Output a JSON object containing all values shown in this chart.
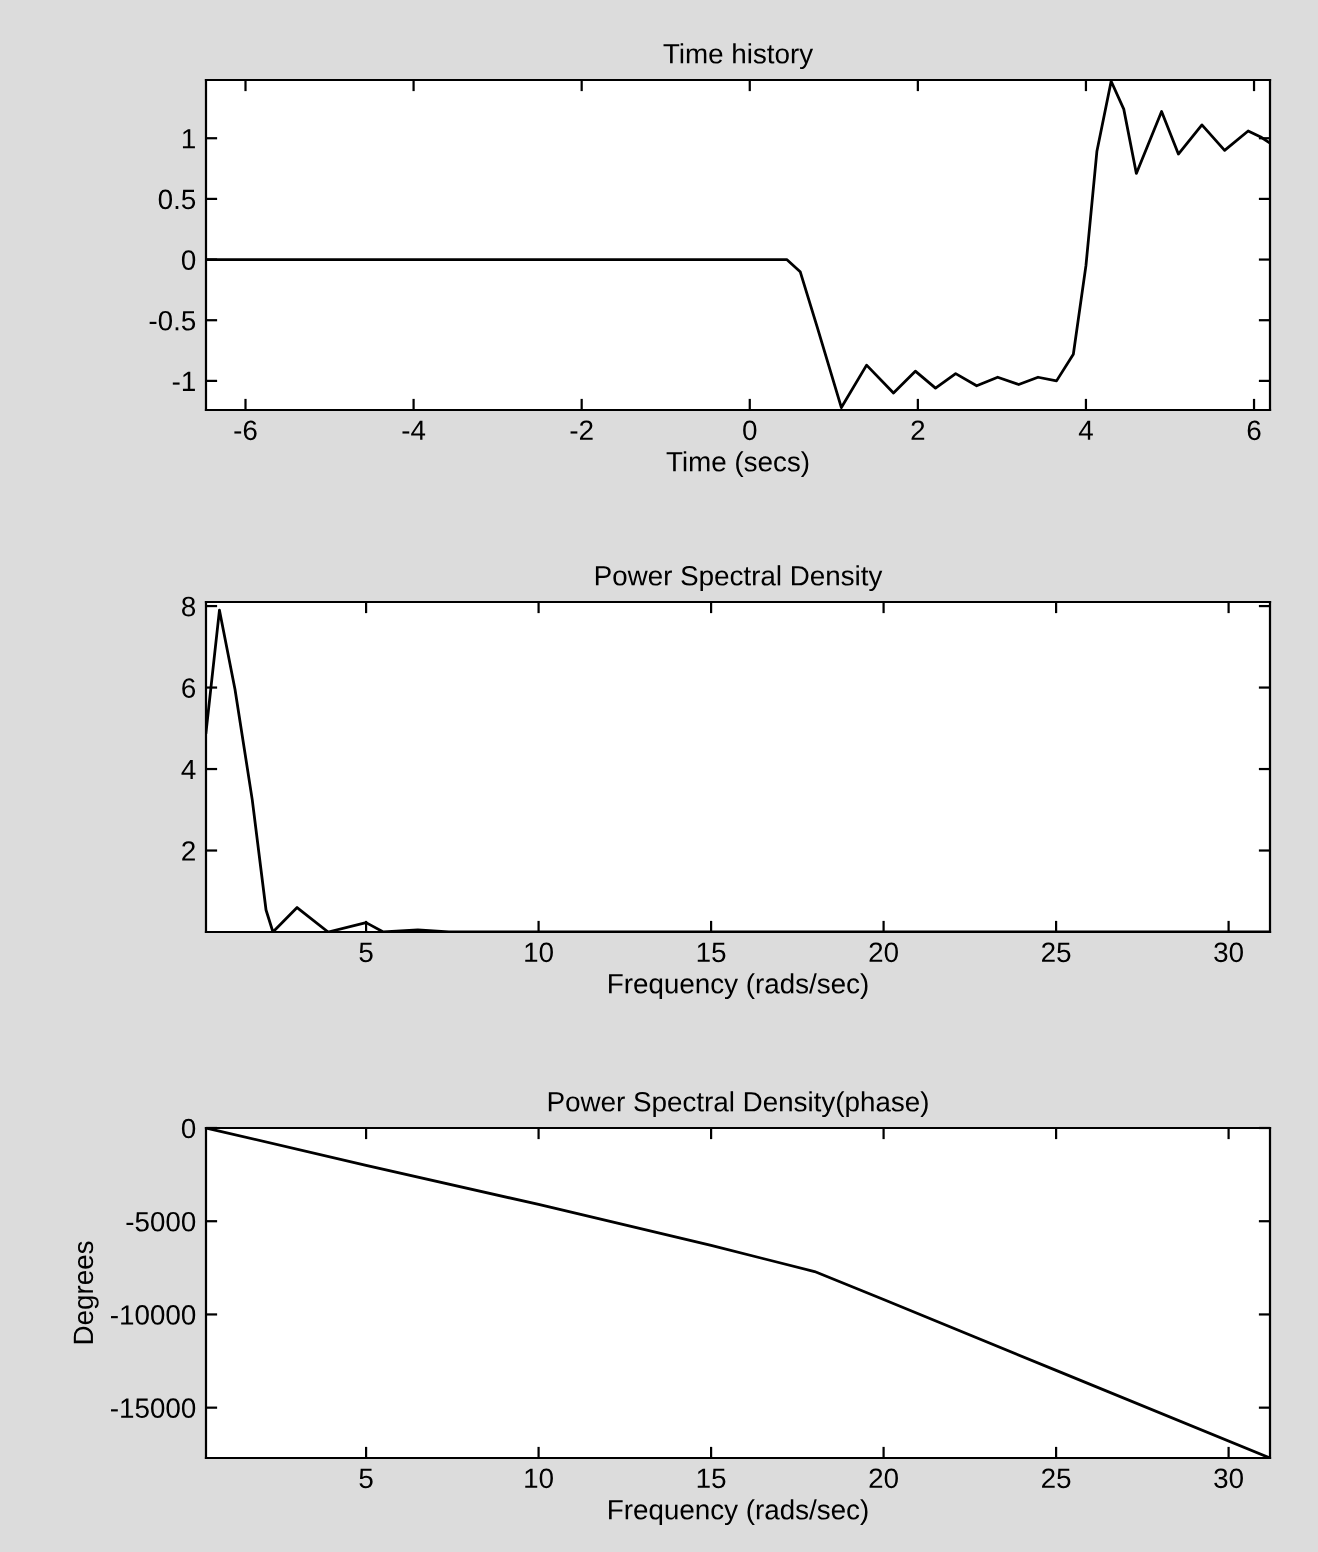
{
  "chart_data": [
    {
      "type": "line",
      "title": "Time history",
      "xlabel": "Time (secs)",
      "xlim": [
        -6.47,
        6.19
      ],
      "ylim": [
        -1.24,
        1.48
      ],
      "xticks": [
        -6,
        -4,
        -2,
        0,
        2,
        4,
        6
      ],
      "yticks": [
        -1,
        -0.5,
        0,
        0.5,
        1
      ],
      "grid": false,
      "legend": false,
      "series": [
        {
          "color": "#000000",
          "x": [
            -6.47,
            0.44,
            0.6,
            0.8,
            1.09,
            1.39,
            1.71,
            1.97,
            2.21,
            2.45,
            2.7,
            2.95,
            3.2,
            3.43,
            3.65,
            3.85,
            4.0,
            4.13,
            4.3,
            4.45,
            4.6,
            4.9,
            5.1,
            5.38,
            5.65,
            5.93,
            6.08,
            6.19
          ],
          "values": [
            0,
            0,
            -0.1,
            -0.55,
            -1.22,
            -0.87,
            -1.1,
            -0.92,
            -1.06,
            -0.94,
            -1.04,
            -0.97,
            -1.03,
            -0.97,
            -1.0,
            -0.78,
            -0.05,
            0.89,
            1.47,
            1.24,
            0.71,
            1.22,
            0.87,
            1.11,
            0.9,
            1.06,
            1.01,
            0.96
          ]
        }
      ]
    },
    {
      "type": "line",
      "title": "Power Spectral Density",
      "xlabel": "Frequency (rads/sec)",
      "xlim": [
        0.36,
        31.2
      ],
      "ylim": [
        0,
        8.1
      ],
      "xticks": [
        5,
        10,
        15,
        20,
        25,
        30
      ],
      "yticks": [
        2,
        4,
        6,
        8
      ],
      "grid": false,
      "legend": false,
      "series": [
        {
          "color": "#000000",
          "x": [
            0.36,
            0.75,
            1.2,
            1.7,
            2.1,
            2.3,
            3.0,
            3.9,
            5.0,
            5.5,
            6.5,
            7.4,
            31.2
          ],
          "values": [
            4.9,
            7.9,
            5.96,
            3.25,
            0.54,
            0,
            0.6,
            0,
            0.23,
            0,
            0.05,
            0,
            0
          ]
        }
      ]
    },
    {
      "type": "line",
      "title": "Power Spectral Density(phase)",
      "xlabel": "Frequency (rads/sec)",
      "ylabel": "Degrees",
      "xlim": [
        0.36,
        31.2
      ],
      "ylim": [
        -17700,
        0
      ],
      "xticks": [
        5,
        10,
        15,
        20,
        25,
        30
      ],
      "yticks": [
        -15000,
        -10000,
        -5000,
        0
      ],
      "grid": false,
      "legend": false,
      "series": [
        {
          "color": "#000000",
          "x": [
            0.36,
            5,
            10,
            15,
            16.5,
            18,
            20,
            25,
            31.2
          ],
          "values": [
            0,
            -2000,
            -4100,
            -6300,
            -7000,
            -7700,
            -9200,
            -13000,
            -17700
          ]
        }
      ]
    }
  ]
}
